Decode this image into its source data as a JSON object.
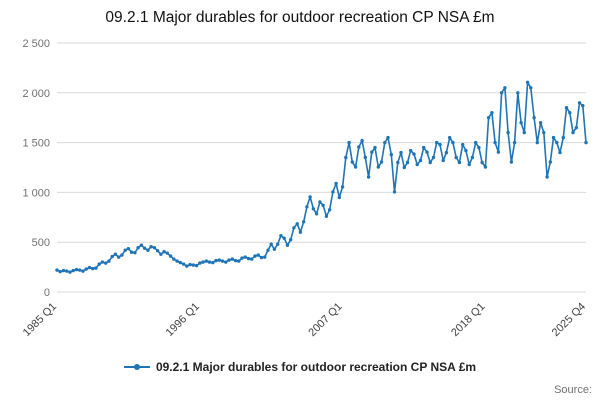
{
  "header": {
    "title": "09.2.1 Major durables for outdoor recreation CP NSA £m"
  },
  "legend": {
    "label": "09.2.1 Major durables for outdoor recreation CP NSA £m"
  },
  "footer": {
    "source_label": "Source:"
  },
  "colors": {
    "line": "#1e74b4",
    "grid": "#d9d9d9",
    "ytick_text": "#707071",
    "xtick_text": "#414042"
  },
  "chart_data": {
    "type": "line",
    "title": "09.2.1 Major durables for outdoor recreation CP NSA £m",
    "series_name": "09.2.1 Major durables for outdoor recreation CP NSA £m",
    "marker": "circle",
    "frequency": "quarterly",
    "x_start": "1985 Q1",
    "x_end": "2025 Q4",
    "xlabel": "",
    "ylabel": "",
    "ylim": [
      0,
      2500
    ],
    "grid": "horizontal",
    "legend_position": "bottom",
    "yticks": [
      {
        "value": 0,
        "label": "0"
      },
      {
        "value": 500,
        "label": "500"
      },
      {
        "value": 1000,
        "label": "1 000"
      },
      {
        "value": 1500,
        "label": "1 500"
      },
      {
        "value": 2000,
        "label": "2 000"
      },
      {
        "value": 2500,
        "label": "2 500"
      }
    ],
    "xticks": [
      {
        "index": 0,
        "label": "1985 Q1"
      },
      {
        "index": 44,
        "label": "1996 Q1"
      },
      {
        "index": 88,
        "label": "2007 Q1"
      },
      {
        "index": 132,
        "label": "2018 Q1"
      },
      {
        "index": 163,
        "label": "2025 Q4"
      }
    ],
    "values": [
      220,
      205,
      215,
      210,
      200,
      215,
      225,
      220,
      210,
      230,
      245,
      235,
      240,
      280,
      300,
      290,
      310,
      355,
      380,
      350,
      370,
      420,
      435,
      400,
      395,
      445,
      470,
      440,
      420,
      455,
      445,
      415,
      380,
      405,
      390,
      360,
      330,
      310,
      295,
      280,
      260,
      275,
      270,
      265,
      290,
      300,
      310,
      300,
      295,
      315,
      320,
      310,
      300,
      320,
      330,
      315,
      310,
      340,
      350,
      335,
      330,
      360,
      370,
      345,
      350,
      420,
      480,
      430,
      480,
      565,
      540,
      470,
      525,
      645,
      685,
      600,
      705,
      855,
      955,
      835,
      785,
      905,
      870,
      760,
      825,
      1005,
      1090,
      950,
      1055,
      1350,
      1500,
      1305,
      1255,
      1455,
      1520,
      1350,
      1155,
      1405,
      1450,
      1255,
      1305,
      1500,
      1550,
      1380,
      1005,
      1300,
      1400,
      1250,
      1300,
      1420,
      1385,
      1280,
      1320,
      1450,
      1405,
      1300,
      1350,
      1500,
      1480,
      1320,
      1400,
      1550,
      1500,
      1350,
      1300,
      1480,
      1420,
      1280,
      1350,
      1500,
      1450,
      1300,
      1255,
      1750,
      1800,
      1500,
      1405,
      2000,
      2050,
      1600,
      1305,
      1500,
      2000,
      1700,
      1600,
      2105,
      2050,
      1750,
      1500,
      1700,
      1600,
      1155,
      1305,
      1550,
      1500,
      1400,
      1550,
      1850,
      1800,
      1600,
      1650,
      1900,
      1870,
      1500
    ]
  }
}
